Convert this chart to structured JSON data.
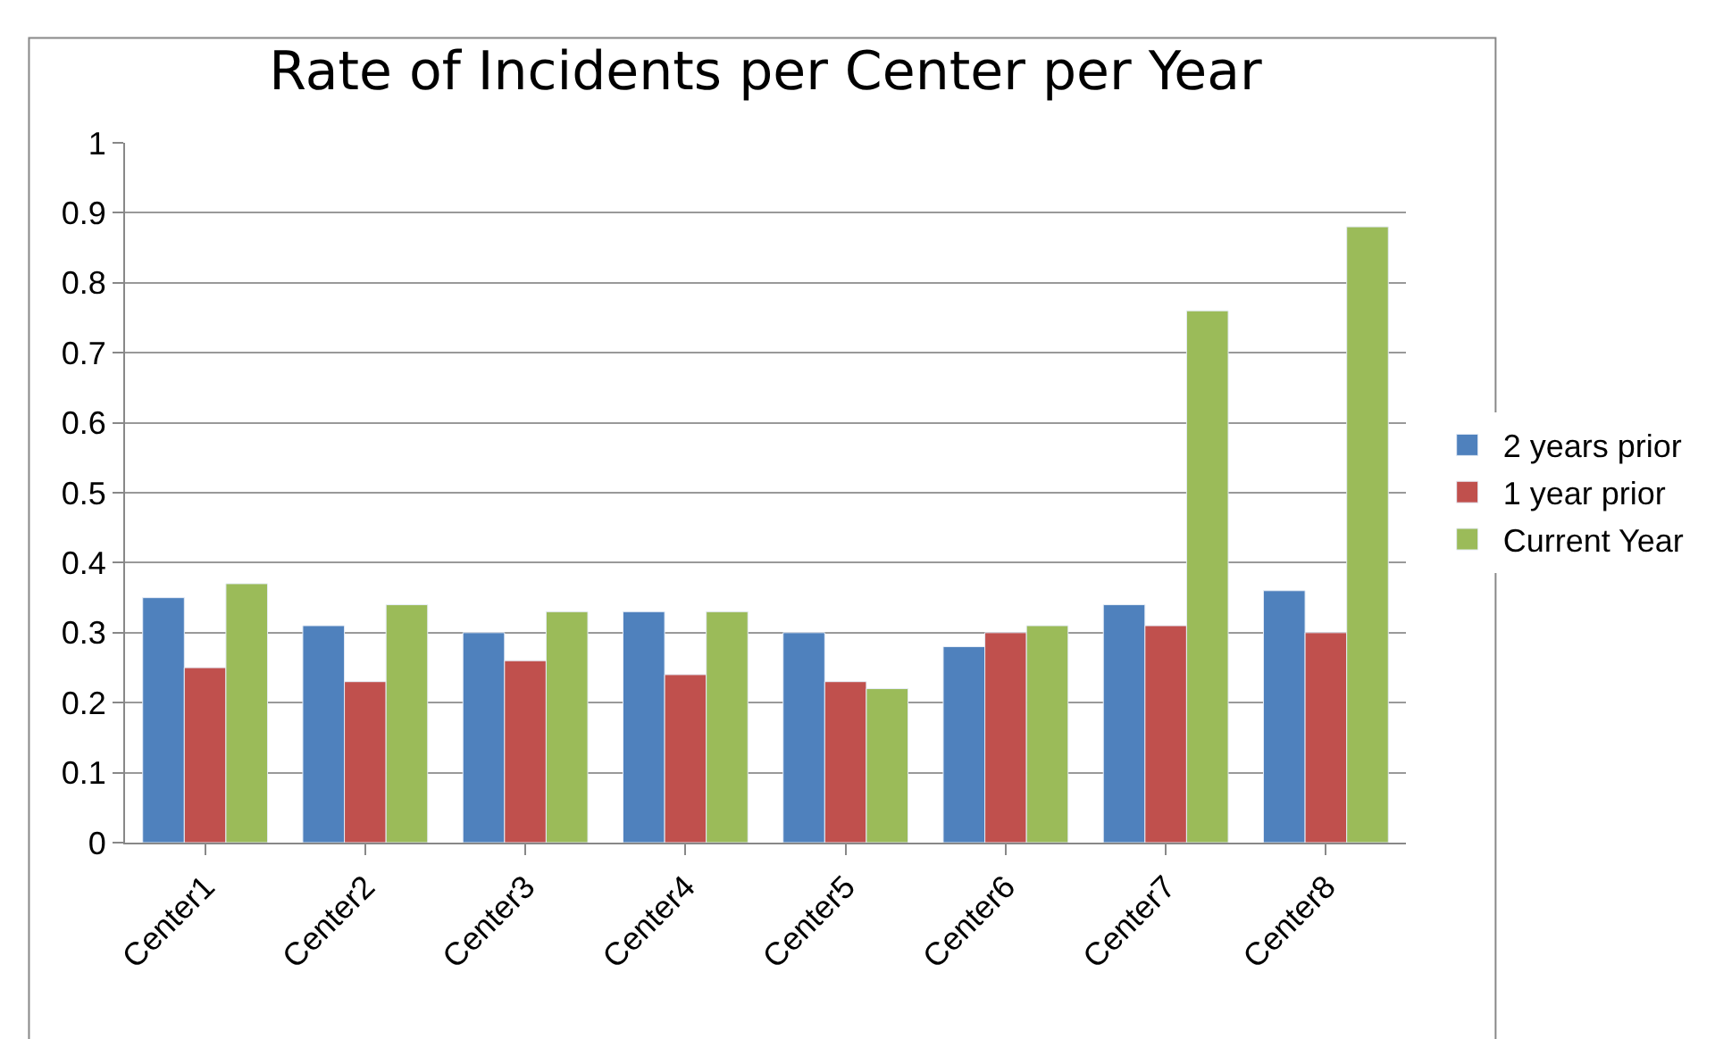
{
  "chart_data": {
    "type": "bar",
    "title": "Rate of Incidents per Center per Year",
    "categories": [
      "Center1",
      "Center2",
      "Center3",
      "Center4",
      "Center5",
      "Center6",
      "Center7",
      "Center8"
    ],
    "series": [
      {
        "name": "2 years prior",
        "color": "#4f81bd",
        "values": [
          0.35,
          0.31,
          0.3,
          0.33,
          0.3,
          0.28,
          0.34,
          0.36
        ]
      },
      {
        "name": "1 year prior",
        "color": "#c0504d",
        "values": [
          0.25,
          0.23,
          0.26,
          0.24,
          0.23,
          0.3,
          0.31,
          0.3
        ]
      },
      {
        "name": "Current Year",
        "color": "#9bbb59",
        "values": [
          0.37,
          0.34,
          0.33,
          0.33,
          0.22,
          0.31,
          0.76,
          0.88
        ]
      }
    ],
    "ylim": [
      0,
      1
    ],
    "yticks": [
      0,
      0.1,
      0.2,
      0.3,
      0.4,
      0.5,
      0.6,
      0.7,
      0.8,
      0.9,
      1
    ],
    "grid": "y",
    "legend": "right"
  }
}
